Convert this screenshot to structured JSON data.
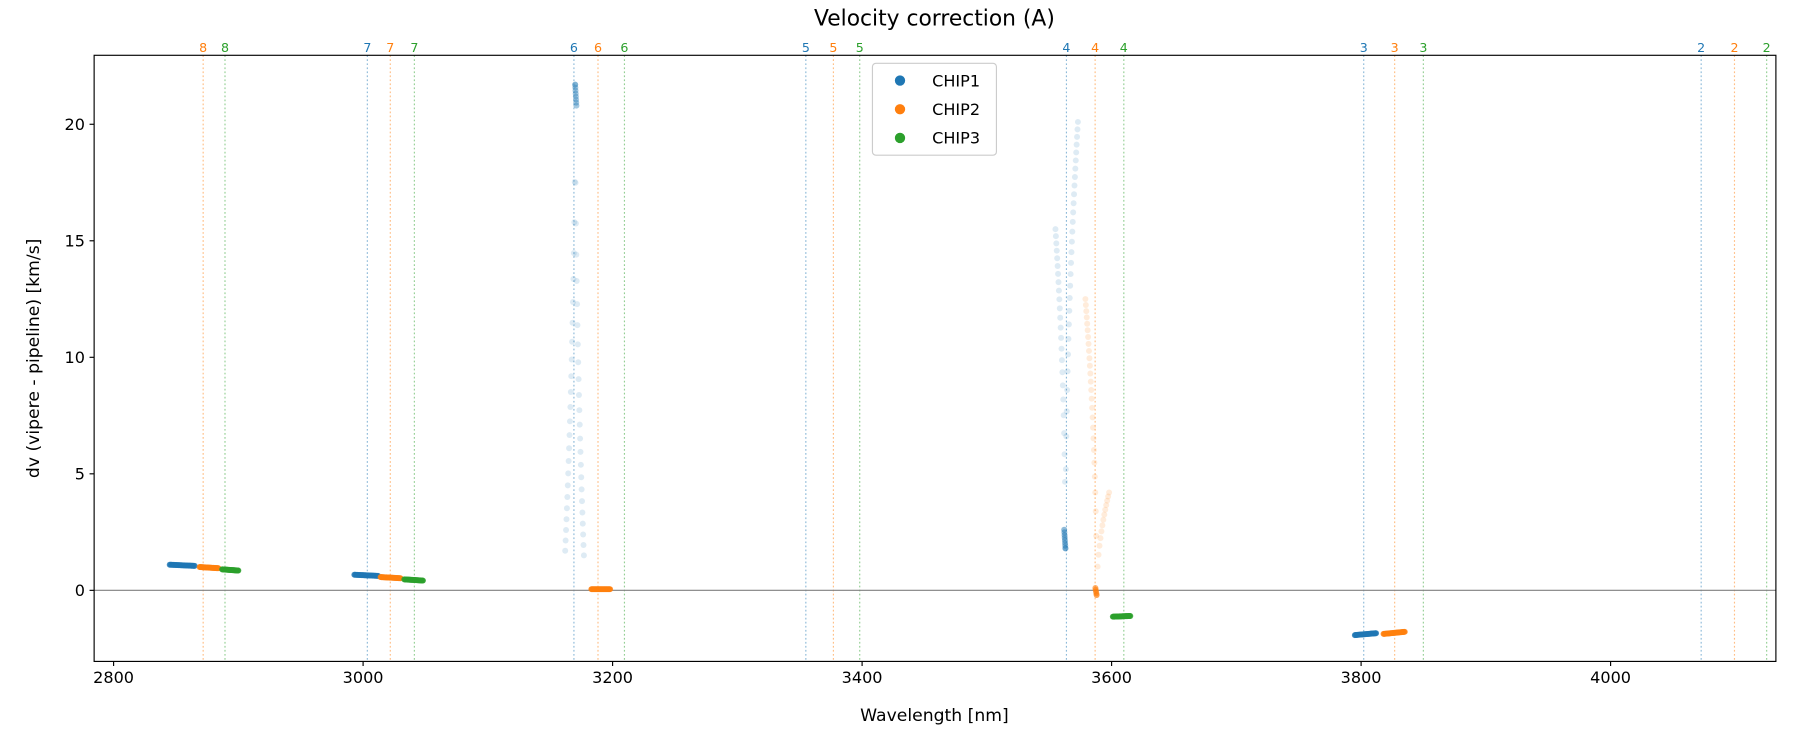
{
  "chart_data": {
    "type": "scatter",
    "title": "Velocity correction (A)",
    "xlabel": "Wavelength [nm]",
    "ylabel": "dv (vipere - pipeline) [km/s]",
    "xlim": [
      2784.4,
      4132.5
    ],
    "ylim": [
      -3.05,
      22.96
    ],
    "xticks": [
      2800,
      3000,
      3200,
      3400,
      3600,
      3800,
      4000
    ],
    "yticks": [
      0,
      5,
      10,
      15,
      20
    ],
    "zero_line": true,
    "legend": {
      "placement": "top-center",
      "entries": [
        "CHIP1",
        "CHIP2",
        "CHIP3"
      ]
    },
    "colors": {
      "CHIP1": "#1f77b4",
      "CHIP2": "#ff7f0e",
      "CHIP3": "#2ca02c",
      "zero": "#808080"
    },
    "order_lines": [
      {
        "order": "8",
        "chip": "CHIP2",
        "x": 2871.8
      },
      {
        "order": "8",
        "chip": "CHIP3",
        "x": 2889.3
      },
      {
        "order": "7",
        "chip": "CHIP1",
        "x": 3003.4
      },
      {
        "order": "7",
        "chip": "CHIP2",
        "x": 3021.8
      },
      {
        "order": "7",
        "chip": "CHIP3",
        "x": 3041.1
      },
      {
        "order": "6",
        "chip": "CHIP1",
        "x": 3169.0
      },
      {
        "order": "6",
        "chip": "CHIP2",
        "x": 3188.3
      },
      {
        "order": "6",
        "chip": "CHIP3",
        "x": 3209.5
      },
      {
        "order": "5",
        "chip": "CHIP1",
        "x": 3354.9
      },
      {
        "order": "5",
        "chip": "CHIP2",
        "x": 3377.0
      },
      {
        "order": "5",
        "chip": "CHIP3",
        "x": 3398.1
      },
      {
        "order": "4",
        "chip": "CHIP1",
        "x": 3563.8
      },
      {
        "order": "4",
        "chip": "CHIP2",
        "x": 3586.8
      },
      {
        "order": "4",
        "chip": "CHIP3",
        "x": 3609.8
      },
      {
        "order": "3",
        "chip": "CHIP1",
        "x": 3802.1
      },
      {
        "order": "3",
        "chip": "CHIP2",
        "x": 3826.9
      },
      {
        "order": "3",
        "chip": "CHIP3",
        "x": 3849.9
      },
      {
        "order": "2",
        "chip": "CHIP1",
        "x": 4072.6
      },
      {
        "order": "2",
        "chip": "CHIP2",
        "x": 4099.3
      },
      {
        "order": "2",
        "chip": "CHIP3",
        "x": 4125.1
      }
    ],
    "series": [
      {
        "chip": "CHIP1",
        "order": "8",
        "x0": 2845,
        "y0": 1.1,
        "x1": 2865,
        "y1": 1.05,
        "n": 30,
        "alpha": 0.8
      },
      {
        "chip": "CHIP2",
        "order": "8",
        "x0": 2869,
        "y0": 1.0,
        "x1": 2884,
        "y1": 0.95,
        "n": 30,
        "alpha": 0.8
      },
      {
        "chip": "CHIP3",
        "order": "8",
        "x0": 2887,
        "y0": 0.9,
        "x1": 2900,
        "y1": 0.85,
        "n": 30,
        "alpha": 0.8
      },
      {
        "chip": "CHIP1",
        "order": "7",
        "x0": 2993,
        "y0": 0.67,
        "x1": 3012,
        "y1": 0.62,
        "n": 30,
        "alpha": 0.8
      },
      {
        "chip": "CHIP2",
        "order": "7",
        "x0": 3014,
        "y0": 0.57,
        "x1": 3030,
        "y1": 0.52,
        "n": 30,
        "alpha": 0.8
      },
      {
        "chip": "CHIP3",
        "order": "7",
        "x0": 3033,
        "y0": 0.47,
        "x1": 3048,
        "y1": 0.42,
        "n": 30,
        "alpha": 0.8
      },
      {
        "chip": "CHIP1",
        "order": "6",
        "x0": 3170,
        "y0": 21.7,
        "x1": 3162,
        "y1": 1.7,
        "n": 24,
        "alpha": 0.15
      },
      {
        "chip": "CHIP1",
        "order": "6",
        "x0": 3170,
        "y0": 21.7,
        "x1": 3177,
        "y1": 1.5,
        "n": 24,
        "alpha": 0.15
      },
      {
        "chip": "CHIP1",
        "order": "6",
        "x0": 3170,
        "y0": 21.7,
        "x1": 3171,
        "y1": 20.8,
        "n": 8,
        "alpha": 0.4
      },
      {
        "chip": "CHIP2",
        "order": "6",
        "x0": 3183,
        "y0": 0.05,
        "x1": 3198,
        "y1": 0.05,
        "n": 30,
        "alpha": 0.8
      },
      {
        "chip": "CHIP1",
        "order": "4",
        "x0": 3563,
        "y0": 1.8,
        "x1": 3555,
        "y1": 15.5,
        "n": 24,
        "alpha": 0.15
      },
      {
        "chip": "CHIP1",
        "order": "4",
        "x0": 3563,
        "y0": 1.8,
        "x1": 3573,
        "y1": 20.1,
        "n": 30,
        "alpha": 0.15
      },
      {
        "chip": "CHIP1",
        "order": "4",
        "x0": 3562,
        "y0": 2.6,
        "x1": 3563,
        "y1": 1.8,
        "n": 8,
        "alpha": 0.5
      },
      {
        "chip": "CHIP2",
        "order": "4",
        "x0": 3588,
        "y0": -0.2,
        "x1": 3579,
        "y1": 12.5,
        "n": 26,
        "alpha": 0.15
      },
      {
        "chip": "CHIP2",
        "order": "4",
        "x0": 3588,
        "y0": -0.2,
        "x1": 3598,
        "y1": 4.2,
        "n": 14,
        "alpha": 0.15
      },
      {
        "chip": "CHIP2",
        "order": "4",
        "x0": 3587,
        "y0": 0.1,
        "x1": 3588,
        "y1": -0.2,
        "n": 5,
        "alpha": 0.6
      },
      {
        "chip": "CHIP3",
        "order": "4",
        "x0": 3601,
        "y0": -1.13,
        "x1": 3615,
        "y1": -1.1,
        "n": 30,
        "alpha": 0.8
      },
      {
        "chip": "CHIP1",
        "order": "3",
        "x0": 3795,
        "y0": -1.92,
        "x1": 3812,
        "y1": -1.84,
        "n": 30,
        "alpha": 0.8
      },
      {
        "chip": "CHIP2",
        "order": "3",
        "x0": 3818,
        "y0": -1.87,
        "x1": 3835,
        "y1": -1.78,
        "n": 30,
        "alpha": 0.8
      }
    ]
  }
}
